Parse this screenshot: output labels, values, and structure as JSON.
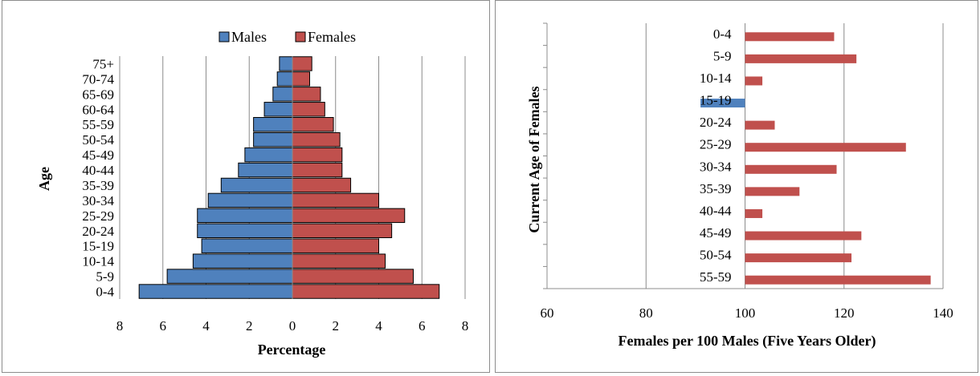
{
  "colors": {
    "males": "#4F81BD",
    "females": "#C0504D",
    "grid": "#8C8C8C",
    "axis": "#8C8C8C"
  },
  "chart_data": [
    {
      "type": "bar",
      "orientation": "horizontal",
      "title": "",
      "xlabel": "Percentage",
      "ylabel": "Age",
      "xlim": [
        -8,
        8
      ],
      "x_tick_labels": [
        "8",
        "6",
        "4",
        "2",
        "0",
        "2",
        "4",
        "6",
        "8"
      ],
      "grid": true,
      "legend_position": "top",
      "categories": [
        "0-4",
        "5-9",
        "10-14",
        "15-19",
        "20-24",
        "25-29",
        "30-34",
        "35-39",
        "40-44",
        "45-49",
        "50-54",
        "55-59",
        "60-64",
        "65-69",
        "70-74",
        "75+"
      ],
      "series": [
        {
          "name": "Males",
          "values": [
            -7.1,
            -5.8,
            -4.6,
            -4.2,
            -4.4,
            -4.4,
            -3.9,
            -3.3,
            -2.5,
            -2.2,
            -1.8,
            -1.8,
            -1.3,
            -0.9,
            -0.7,
            -0.6
          ]
        },
        {
          "name": "Females",
          "values": [
            6.8,
            5.6,
            4.3,
            4.0,
            4.6,
            5.2,
            4.0,
            2.7,
            2.3,
            2.3,
            2.2,
            1.9,
            1.5,
            1.3,
            0.8,
            0.9
          ]
        }
      ]
    },
    {
      "type": "bar",
      "orientation": "horizontal",
      "title": "",
      "xlabel": "Females per 100 Males (Five Years Older)",
      "ylabel": "Current Age of Females",
      "xlim": [
        60,
        140
      ],
      "x_ticks": [
        60,
        80,
        100,
        120,
        140
      ],
      "base": 100,
      "grid": true,
      "categories": [
        "0-4",
        "5-9",
        "10-14",
        "15-19",
        "20-24",
        "25-29",
        "30-34",
        "35-39",
        "40-44",
        "45-49",
        "50-54",
        "55-59"
      ],
      "values": [
        118,
        122.5,
        103.5,
        91,
        106,
        132.5,
        118.5,
        111,
        103.5,
        123.5,
        121.5,
        137.5
      ]
    }
  ]
}
